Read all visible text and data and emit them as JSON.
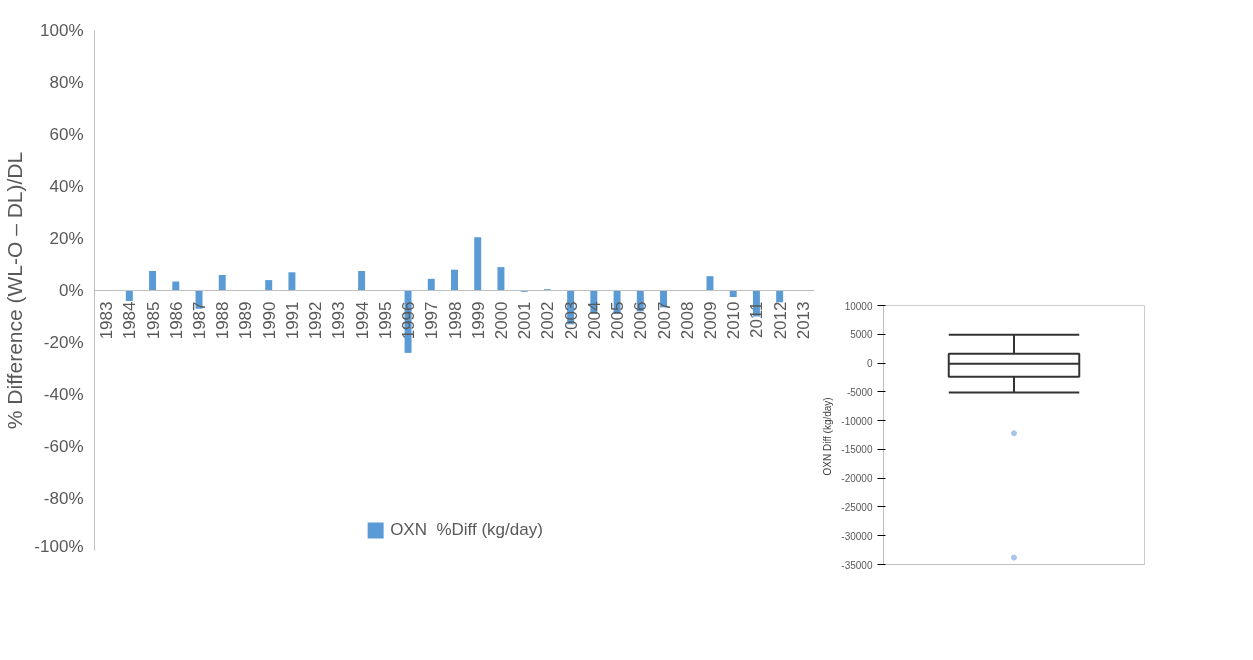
{
  "chart_data": [
    {
      "type": "bar",
      "ylabel": "% Difference (WL-O – DL)/DL",
      "categories": [
        "1983",
        "1984",
        "1985",
        "1986",
        "1987",
        "1988",
        "1989",
        "1990",
        "1991",
        "1992",
        "1993",
        "1994",
        "1995",
        "1996",
        "1997",
        "1998",
        "1999",
        "2000",
        "2001",
        "2002",
        "2003",
        "2004",
        "2005",
        "2006",
        "2007",
        "2008",
        "2009",
        "2010",
        "2011",
        "2012",
        "2013"
      ],
      "series": [
        {
          "name": "OXN  %Diff (kg/day)",
          "color": "#5b9bd5",
          "values": [
            0,
            -4,
            7.5,
            3.5,
            -7,
            6,
            0,
            4,
            7,
            0,
            0,
            7.5,
            0,
            -24,
            4.5,
            8,
            20.5,
            9,
            -0.5,
            0.5,
            -13,
            -9,
            -9,
            -8,
            -6.5,
            0,
            5.5,
            -2.5,
            -10,
            -4.5,
            0
          ]
        }
      ],
      "ylim": [
        -100,
        100
      ],
      "yticks": [
        {
          "value": -100,
          "label": "-100%"
        },
        {
          "value": -80,
          "label": "-80%"
        },
        {
          "value": -60,
          "label": "-60%"
        },
        {
          "value": -40,
          "label": "-40%"
        },
        {
          "value": -20,
          "label": "-20%"
        },
        {
          "value": 0,
          "label": "0%"
        },
        {
          "value": 20,
          "label": "20%"
        },
        {
          "value": 40,
          "label": "40%"
        },
        {
          "value": 60,
          "label": "60%"
        },
        {
          "value": 80,
          "label": "80%"
        },
        {
          "value": 100,
          "label": "100%"
        }
      ],
      "grid": false,
      "legend": "bottom"
    },
    {
      "type": "box",
      "ylabel": "OXN  Diff (kg/day)",
      "categories": [
        null
      ],
      "boxes": [
        {
          "low": -5100,
          "q1": -2400,
          "median": -100,
          "q3": 1600,
          "high": 4900,
          "outliers": [
            -12200,
            -33800
          ]
        }
      ],
      "ylim": [
        -35000,
        10000
      ],
      "yticks": [
        -35000,
        -30000,
        -25000,
        -20000,
        -15000,
        -10000,
        -5000,
        0,
        5000,
        10000
      ],
      "tick_labels": "y",
      "grid": false
    }
  ]
}
